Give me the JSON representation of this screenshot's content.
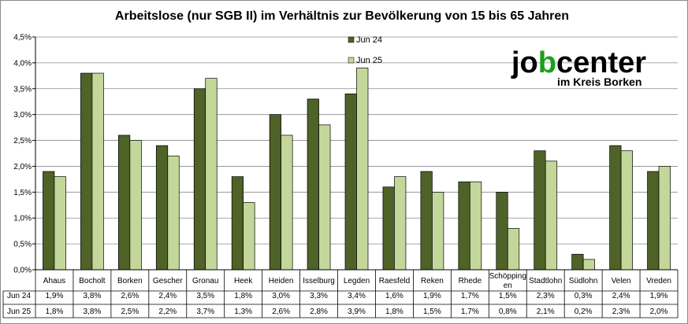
{
  "chart_data": {
    "type": "bar",
    "title": "Arbeitslose (nur SGB II) im Verhältnis zur Bevölkerung von 15 bis 65 Jahren",
    "categories": [
      "Ahaus",
      "Bocholt",
      "Borken",
      "Gescher",
      "Gronau",
      "Heek",
      "Heiden",
      "Isselburg",
      "Legden",
      "Raesfeld",
      "Reken",
      "Rhede",
      "Schöpping en",
      "Stadtlohn",
      "Südlohn",
      "Velen",
      "Vreden"
    ],
    "series": [
      {
        "name": "Jun 24",
        "color": "#4f6228",
        "values": [
          1.9,
          3.8,
          2.6,
          2.4,
          3.5,
          1.8,
          3.0,
          3.3,
          3.4,
          1.6,
          1.9,
          1.7,
          1.5,
          2.3,
          0.3,
          2.4,
          1.9
        ],
        "labels": [
          "1,9%",
          "3,8%",
          "2,6%",
          "2,4%",
          "3,5%",
          "1,8%",
          "3,0%",
          "3,3%",
          "3,4%",
          "1,6%",
          "1,9%",
          "1,7%",
          "1,5%",
          "2,3%",
          "0,3%",
          "2,4%",
          "1,9%"
        ]
      },
      {
        "name": "Jun 25",
        "color": "#c4d79b",
        "values": [
          1.8,
          3.8,
          2.5,
          2.2,
          3.7,
          1.3,
          2.6,
          2.8,
          3.9,
          1.8,
          1.5,
          1.7,
          0.8,
          2.1,
          0.2,
          2.3,
          2.0
        ],
        "labels": [
          "1,8%",
          "3,8%",
          "2,5%",
          "2,2%",
          "3,7%",
          "1,3%",
          "2,6%",
          "2,8%",
          "3,9%",
          "1,8%",
          "1,5%",
          "1,7%",
          "0,8%",
          "2,1%",
          "0,2%",
          "2,3%",
          "2,0%"
        ]
      }
    ],
    "ylim": [
      0,
      4.5
    ],
    "yticks": [
      "0,0%",
      "0,5%",
      "1,0%",
      "1,5%",
      "2,0%",
      "2,5%",
      "3,0%",
      "3,5%",
      "4,0%",
      "4,5%"
    ],
    "grid": true,
    "legend_position": "top-center"
  },
  "logo": {
    "word": "jobcenter",
    "sub": "im Kreis Borken",
    "accent": "#1aa01a"
  }
}
